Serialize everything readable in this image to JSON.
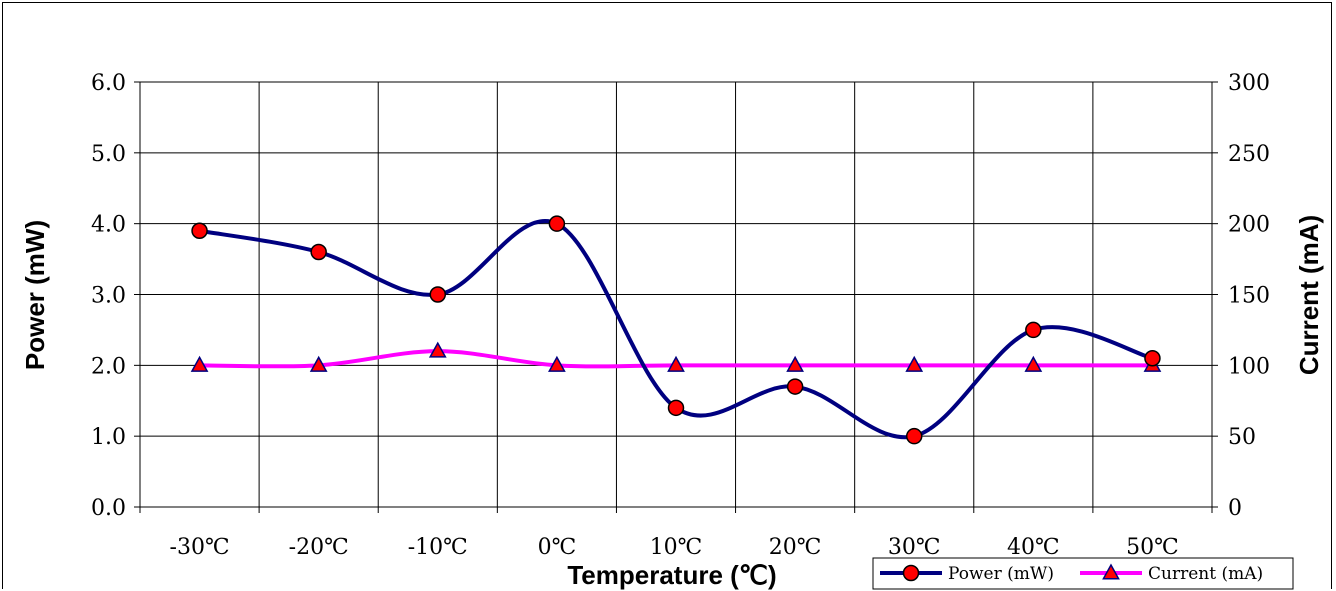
{
  "chart_data": {
    "type": "line",
    "categories": [
      "-30℃",
      "-20℃",
      "-10℃",
      "0℃",
      "10℃",
      "20℃",
      "30℃",
      "40℃",
      "50℃"
    ],
    "xlabel": "Temperature (℃)",
    "y_left": {
      "label": "Power (mW)",
      "range": [
        0,
        6
      ],
      "ticks": [
        "0.0",
        "1.0",
        "2.0",
        "3.0",
        "4.0",
        "5.0",
        "6.0"
      ]
    },
    "y_right": {
      "label": "Current (mA)",
      "range": [
        0,
        300
      ],
      "ticks": [
        "0",
        "50",
        "100",
        "150",
        "200",
        "250",
        "300"
      ]
    },
    "grid": true,
    "legend_position": "bottom-right",
    "series": [
      {
        "name": "Power (mW)",
        "axis": "left",
        "values": [
          3.9,
          3.6,
          3.0,
          4.0,
          1.4,
          1.7,
          1.0,
          2.5,
          2.1
        ],
        "line_color": "#000080",
        "marker": "circle",
        "marker_color": "#ff0000"
      },
      {
        "name": "Current (mA)",
        "axis": "right",
        "values": [
          100,
          100,
          110,
          100,
          100,
          100,
          100,
          100,
          100
        ],
        "line_color": "#ff00ff",
        "marker": "triangle",
        "marker_color": "#ff0000"
      }
    ]
  }
}
